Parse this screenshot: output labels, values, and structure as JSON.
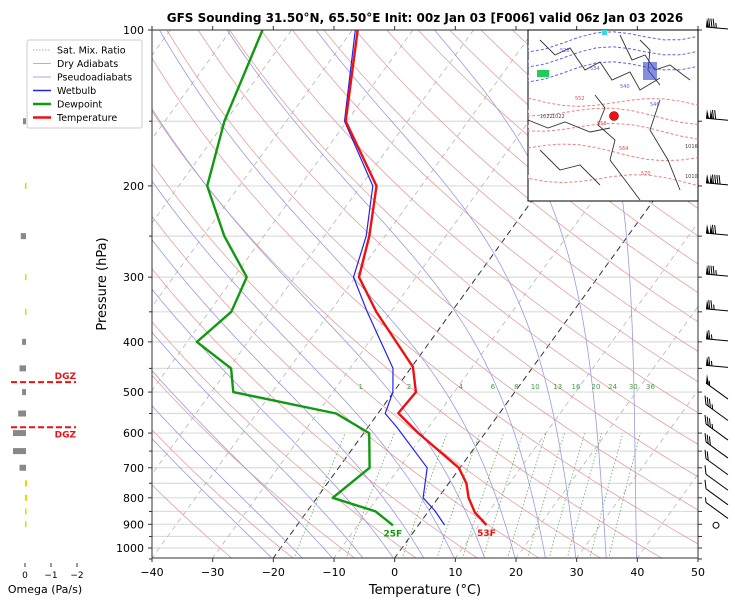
{
  "chart_data": {
    "type": "line",
    "subtype": "skew-t log-p sounding",
    "title": "GFS Sounding 31.50°N, 65.50°E Init: 00z Jan 03 [F006] valid 06z Jan 03 2026",
    "xlabel": "Temperature (°C)",
    "ylabel": "Pressure (hPa)",
    "xlim": [
      -40,
      50
    ],
    "ylim": [
      1050,
      100
    ],
    "x_ticks": [
      -40,
      -30,
      -20,
      -10,
      0,
      10,
      20,
      30,
      40,
      50
    ],
    "x_tick_labels": [
      "−40",
      "−30",
      "−20",
      "−10",
      "0",
      "10",
      "20",
      "30",
      "40",
      "50"
    ],
    "y_ticks": [
      100,
      200,
      300,
      400,
      500,
      600,
      700,
      800,
      900,
      1000
    ],
    "y_tick_labels": [
      "100",
      "200",
      "300",
      "400",
      "500",
      "600",
      "700",
      "800",
      "900",
      "1000"
    ],
    "legend": {
      "placement": "top-left",
      "entries": [
        {
          "label": "Sat. Mix. Ratio",
          "color": "#5fae5f",
          "style": "dotted"
        },
        {
          "label": "Dry Adiabats",
          "color": "#e08080",
          "style": "thin"
        },
        {
          "label": "Pseudoadiabats",
          "color": "#8888dd",
          "style": "thin"
        },
        {
          "label": "Wetbulb",
          "color": "#2222ee",
          "style": "solid"
        },
        {
          "label": "Dewpoint",
          "color": "#119911",
          "style": "thick"
        },
        {
          "label": "Temperature",
          "color": "#ee1111",
          "style": "thick"
        }
      ]
    },
    "series": [
      {
        "name": "Temperature",
        "color": "#ee1111",
        "points": [
          [
            100,
            -69.1
          ],
          [
            150,
            -60.2
          ],
          [
            200,
            -47.4
          ],
          [
            250,
            -42.6
          ],
          [
            300,
            -39.4
          ],
          [
            350,
            -32.4
          ],
          [
            447,
            -19.8
          ],
          [
            500,
            -16.3
          ],
          [
            549,
            -16.7
          ],
          [
            600,
            -11.0
          ],
          [
            700,
            -0.2
          ],
          [
            750,
            2.9
          ],
          [
            800,
            5.0
          ],
          [
            854,
            7.8
          ],
          [
            903,
            11.2
          ]
        ]
      },
      {
        "name": "Dewpoint",
        "color": "#119911",
        "points": [
          [
            100,
            -84.8
          ],
          [
            150,
            -80.2
          ],
          [
            200,
            -75.3
          ],
          [
            250,
            -66.5
          ],
          [
            300,
            -57.9
          ],
          [
            350,
            -56.3
          ],
          [
            400,
            -58.4
          ],
          [
            450,
            -49.6
          ],
          [
            500,
            -46.4
          ],
          [
            550,
            -26.9
          ],
          [
            600,
            -19.1
          ],
          [
            700,
            -14.9
          ],
          [
            800,
            -17.4
          ],
          [
            850,
            -8.7
          ],
          [
            904,
            -4.2
          ]
        ]
      },
      {
        "name": "Wetbulb",
        "color": "#2222ee",
        "points": [
          [
            100,
            -69.5
          ],
          [
            150,
            -60.4
          ],
          [
            200,
            -48.0
          ],
          [
            250,
            -43.1
          ],
          [
            300,
            -40.3
          ],
          [
            350,
            -33.9
          ],
          [
            450,
            -22.9
          ],
          [
            500,
            -20.1
          ],
          [
            550,
            -18.8
          ],
          [
            583,
            -15.4
          ],
          [
            700,
            -5.4
          ],
          [
            800,
            -2.5
          ],
          [
            846,
            0.9
          ],
          [
            903,
            4.3
          ]
        ]
      }
    ],
    "isotherms_highlighted": [
      0,
      -20
    ],
    "mixing_ratio_labels": [
      "1",
      "2",
      "4",
      "6",
      "8",
      "10",
      "13",
      "16",
      "20",
      "24",
      "30",
      "36"
    ],
    "mixing_ratio_values": [
      1,
      2,
      4,
      6,
      8,
      10,
      13,
      16,
      20,
      24,
      30,
      36
    ],
    "surface_labels": {
      "dewpoint": "25F",
      "temperature": "53F"
    },
    "wind_barbs_kt": [
      {
        "p": 100,
        "speed": 85
      },
      {
        "p": 150,
        "speed": 120
      },
      {
        "p": 200,
        "speed": 140
      },
      {
        "p": 250,
        "speed": 120
      },
      {
        "p": 300,
        "speed": 85
      },
      {
        "p": 350,
        "speed": 75
      },
      {
        "p": 400,
        "speed": 65
      },
      {
        "p": 450,
        "speed": 65
      },
      {
        "p": 500,
        "speed": 55
      },
      {
        "p": 550,
        "speed": 35
      },
      {
        "p": 600,
        "speed": 35
      },
      {
        "p": 650,
        "speed": 30
      },
      {
        "p": 700,
        "speed": 20
      },
      {
        "p": 750,
        "speed": 10
      },
      {
        "p": 800,
        "speed": 10
      },
      {
        "p": 850,
        "speed": 5
      },
      {
        "p": 900,
        "speed": 0
      }
    ],
    "omega": {
      "xlabel": "Omega (Pa/s)",
      "x_ticks": [
        0,
        -1,
        -2
      ],
      "x_tick_labels": [
        "0",
        "−1",
        "−2"
      ],
      "values": [
        {
          "p": 150,
          "omega": 0.1
        },
        {
          "p": 200,
          "omega": -0.02
        },
        {
          "p": 250,
          "omega": 0.2
        },
        {
          "p": 300,
          "omega": -0.02
        },
        {
          "p": 350,
          "omega": -0.02
        },
        {
          "p": 400,
          "omega": 0.15
        },
        {
          "p": 450,
          "omega": 0.25
        },
        {
          "p": 500,
          "omega": 0.15
        },
        {
          "p": 550,
          "omega": 0.3
        },
        {
          "p": 600,
          "omega": 0.5
        },
        {
          "p": 650,
          "omega": 0.5
        },
        {
          "p": 700,
          "omega": 0.25
        },
        {
          "p": 750,
          "omega": -0.1
        },
        {
          "p": 800,
          "omega": -0.1
        },
        {
          "p": 850,
          "omega": -0.03
        },
        {
          "p": 900,
          "omega": -0.03
        }
      ],
      "dgz_label": "DGZ",
      "dgz_pressures": [
        470,
        590
      ]
    },
    "inset_map": {
      "description": "500 hPa height contours and surface pressure map with sounding location marker",
      "contour_labels": [
        "528",
        "534",
        "540",
        "546",
        "552",
        "558",
        "564",
        "570",
        "1022",
        "1022",
        "1016",
        "1016",
        "1010",
        "1010"
      ]
    }
  }
}
